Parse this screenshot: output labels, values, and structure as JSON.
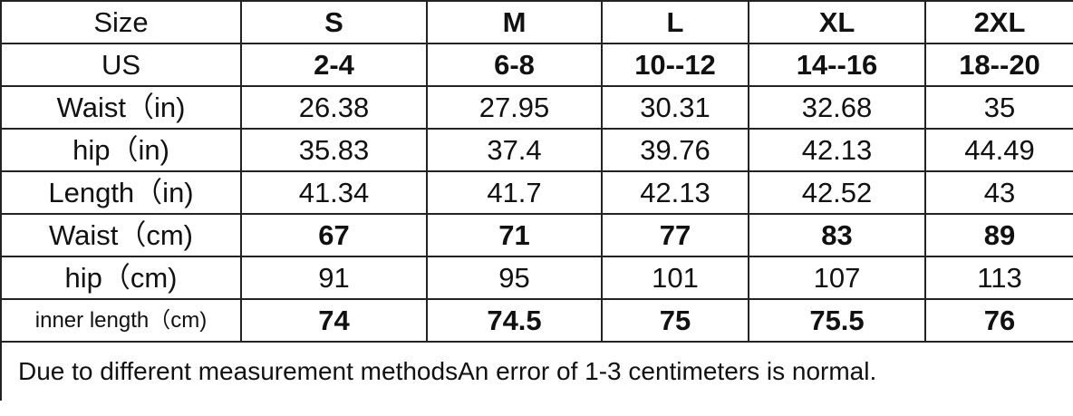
{
  "header": {
    "label": "Size",
    "sizes": [
      "S",
      "M",
      "L",
      "XL",
      "2XL"
    ]
  },
  "rows": [
    {
      "label": "US",
      "bold": true,
      "values": [
        "2-4",
        "6-8",
        "10--12",
        "14--16",
        "18--20"
      ]
    },
    {
      "label": "Waist（in)",
      "bold": false,
      "values": [
        "26.38",
        "27.95",
        "30.31",
        "32.68",
        "35"
      ]
    },
    {
      "label": "hip（in)",
      "bold": false,
      "values": [
        "35.83",
        "37.4",
        "39.76",
        "42.13",
        "44.49"
      ]
    },
    {
      "label": "Length（in)",
      "bold": false,
      "values": [
        "41.34",
        "41.7",
        "42.13",
        "42.52",
        "43"
      ]
    },
    {
      "label": "Waist（cm)",
      "bold": true,
      "values": [
        "67",
        "71",
        "77",
        "83",
        "89"
      ]
    },
    {
      "label": "hip（cm)",
      "bold": false,
      "values": [
        "91",
        "95",
        "101",
        "107",
        "113"
      ]
    },
    {
      "label": "inner length（cm)",
      "bold": true,
      "values": [
        "74",
        "74.5",
        "75",
        "75.5",
        "76"
      ]
    }
  ],
  "note": "Due to different measurement methodsAn error of 1-3 centimeters is normal."
}
